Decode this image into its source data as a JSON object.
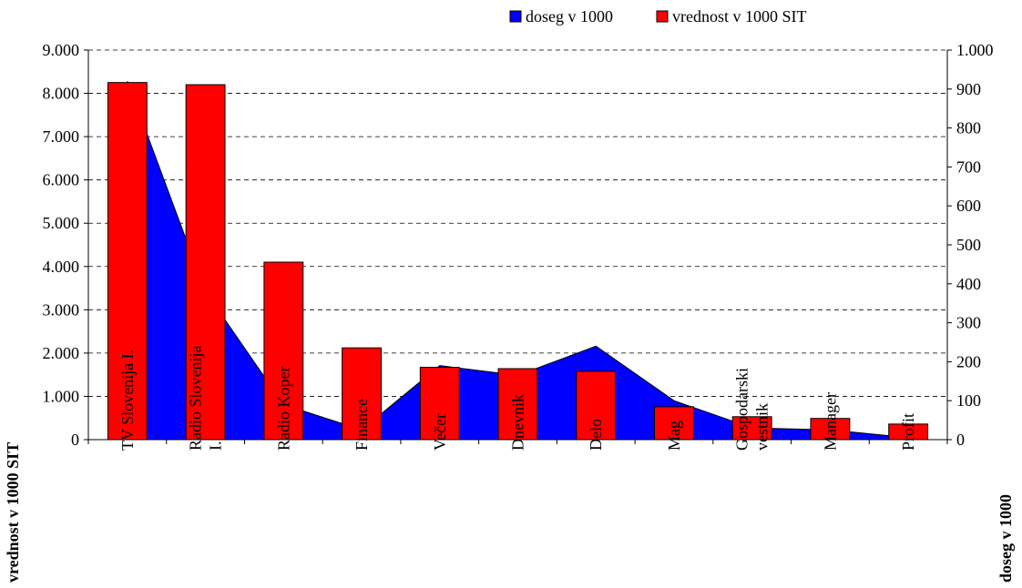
{
  "chart_data": {
    "type": "combo",
    "categories": [
      "TV Slovenija I.",
      "Radio Slovenija\nI.",
      "Radio Koper",
      "Finance",
      "Večer",
      "Dnevnik",
      "Delo",
      "Mag",
      "Gospodarski\nvestnik",
      "Manager",
      "Profit"
    ],
    "series": [
      {
        "name": "doseg v 1000",
        "type": "area",
        "axis": "y2",
        "color": "#0000ff",
        "values": [
          920,
          380,
          90,
          25,
          190,
          165,
          240,
          100,
          30,
          25,
          5
        ]
      },
      {
        "name": "vrednost v 1000 SIT",
        "type": "bar",
        "color": "#ff0000",
        "values": [
          8250,
          8200,
          4100,
          2120,
          1670,
          1640,
          1580,
          760,
          530,
          490,
          360
        ]
      }
    ],
    "ylim": [
      0,
      9000
    ],
    "yticks": [
      0,
      {
        "value": 1000,
        "label": "1.000"
      },
      {
        "value": 2000,
        "label": "2.000"
      },
      {
        "value": 3000,
        "label": "3.000"
      },
      {
        "value": 4000,
        "label": "4.000"
      },
      {
        "value": 5000,
        "label": "5.000"
      },
      {
        "value": 6000,
        "label": "6.000"
      },
      {
        "value": 7000,
        "label": "7.000"
      },
      {
        "value": 8000,
        "label": "8.000"
      },
      {
        "value": 9000,
        "label": "9.000"
      }
    ],
    "y2lim": [
      0,
      1000
    ],
    "y2ticks": [
      0,
      100,
      200,
      300,
      400,
      500,
      600,
      700,
      800,
      900,
      {
        "value": 1000,
        "label": "1.000"
      }
    ],
    "ylabel": "vrednost v 1000  SIT",
    "y2label": "doseg v  1000",
    "grid": true,
    "legend": "top"
  }
}
